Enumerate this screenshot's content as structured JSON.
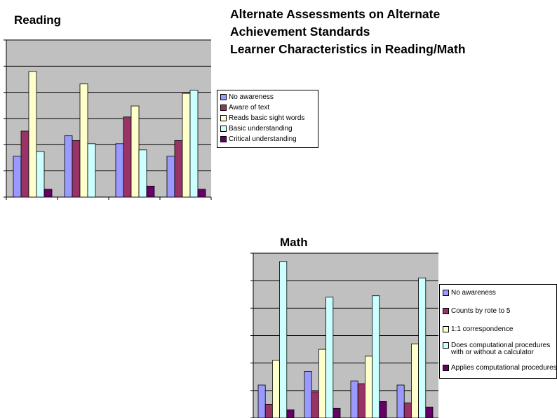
{
  "header": {
    "title_lines": [
      "Alternate Assessments on Alternate",
      "Achievement Standards",
      "Learner Characteristics  in Reading/Math"
    ]
  },
  "colors": {
    "plot_bg": "#c0c0c0",
    "series": [
      "#9999ff",
      "#993366",
      "#ffffcc",
      "#ccffff",
      "#660066"
    ]
  },
  "chart_data": [
    {
      "type": "bar",
      "title": "Reading",
      "categories": [
        "",
        "",
        "",
        ""
      ],
      "ylim": [
        0,
        50
      ],
      "grid": true,
      "legend_placement": "right",
      "series": [
        {
          "name": "No awareness",
          "values": [
            13,
            19.5,
            17,
            13
          ]
        },
        {
          "name": "Aware of text",
          "values": [
            21,
            18,
            25.5,
            18
          ]
        },
        {
          "name": "Reads basic sight words",
          "values": [
            40,
            36,
            29,
            33
          ]
        },
        {
          "name": "Basic understanding",
          "values": [
            14.5,
            17,
            15,
            34
          ]
        },
        {
          "name": "Critical understanding",
          "values": [
            2.5,
            0,
            3.5,
            2.5
          ]
        }
      ]
    },
    {
      "type": "bar",
      "title": "Math",
      "categories": [
        "",
        "",
        "",
        ""
      ],
      "ylim": [
        0,
        60
      ],
      "grid": true,
      "legend_placement": "right",
      "series": [
        {
          "name": "No awareness",
          "values": [
            12,
            17,
            13.5,
            12
          ]
        },
        {
          "name": "Counts by rote to 5",
          "values": [
            5,
            9.5,
            12.5,
            5.5
          ]
        },
        {
          "name": "1:1 correspondence",
          "values": [
            21,
            25,
            22.5,
            27
          ]
        },
        {
          "name": "Does computational procedures with or without a calculator",
          "values": [
            57,
            44,
            44.5,
            51
          ]
        },
        {
          "name": "Applies computational procedures",
          "values": [
            3,
            3.5,
            6,
            4
          ]
        }
      ]
    }
  ]
}
